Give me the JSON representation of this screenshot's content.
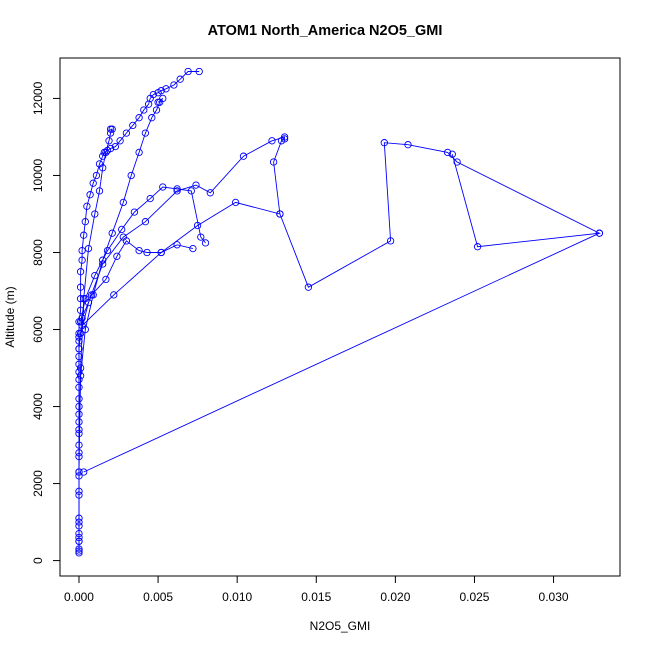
{
  "chart_data": {
    "type": "scatter",
    "title": "ATOM1 North_America N2O5_GMI",
    "xlabel": "N2O5_GMI",
    "ylabel": "Altitude (m)",
    "xlim": [
      -0.0012,
      0.0342
    ],
    "ylim": [
      -400,
      13050
    ],
    "x_ticks": [
      0.0,
      0.005,
      0.01,
      0.015,
      0.02,
      0.025,
      0.03
    ],
    "x_tick_labels": [
      "0.000",
      "0.005",
      "0.010",
      "0.015",
      "0.020",
      "0.025",
      "0.030"
    ],
    "y_ticks": [
      0,
      2000,
      4000,
      6000,
      8000,
      10000,
      12000
    ],
    "y_tick_labels": [
      "0",
      "2000",
      "4000",
      "6000",
      "8000",
      "10000",
      "12000"
    ],
    "grid": false,
    "legend": "none",
    "marker": "open-circle",
    "line_connected": true,
    "series_color": "#0000ff",
    "series": [
      {
        "x": [
          0.0,
          0.0,
          0.0,
          0.0,
          0.0,
          0.0,
          0.0,
          0.0,
          0.0,
          0.0,
          0.0,
          0.0,
          0.0,
          0.0,
          0.0,
          0.0,
          0.0001,
          0.0001,
          0.0001,
          0.0001,
          0.0002,
          0.0002,
          0.0003,
          0.0004,
          0.0005,
          0.0007,
          0.0009,
          0.0011,
          0.0013,
          0.0015,
          0.0016,
          0.0018,
          0.002,
          0.0023,
          0.0026,
          0.003,
          0.0034,
          0.0038,
          0.0041,
          0.0044,
          0.0045,
          0.0047,
          0.005,
          0.0052,
          0.0055,
          0.006,
          0.0064,
          0.0069,
          0.0076
        ],
        "y": [
          200,
          500,
          700,
          1000,
          1800,
          2300,
          2700,
          3300,
          3600,
          4000,
          4500,
          4900,
          5300,
          5700,
          5900,
          6200,
          6500,
          6800,
          7100,
          7500,
          7800,
          8050,
          8450,
          8800,
          9200,
          9500,
          9800,
          10000,
          10300,
          10500,
          10600,
          10650,
          10700,
          10750,
          10900,
          11100,
          11300,
          11500,
          11700,
          11850,
          12000,
          12100,
          12150,
          12200,
          12250,
          12350,
          12500,
          12700,
          12700
        ]
      },
      {
        "x": [
          0.0,
          0.0,
          0.0001,
          0.0003,
          0.0006,
          0.001,
          0.0013,
          0.0015,
          0.0017,
          0.0019,
          0.002,
          0.0021,
          0.002
        ],
        "y": [
          300,
          2300,
          5000,
          6800,
          8100,
          9000,
          9600,
          10200,
          10600,
          10900,
          11100,
          11200,
          11200
        ]
      },
      {
        "x": [
          0.0,
          0.0,
          0.0001,
          0.0004,
          0.0009,
          0.0015,
          0.0021,
          0.0028,
          0.0033,
          0.0038,
          0.0042,
          0.0046,
          0.0049,
          0.0051,
          0.0053,
          0.005
        ],
        "y": [
          500,
          3000,
          4800,
          6000,
          6900,
          7800,
          8500,
          9300,
          10000,
          10600,
          11100,
          11500,
          11700,
          11900,
          12000,
          11900
        ]
      },
      {
        "x": [
          0.0001,
          0.0004,
          0.001,
          0.0018,
          0.0027,
          0.0035,
          0.0045,
          0.0053,
          0.0062,
          0.0071,
          0.0077,
          0.008
        ],
        "y": [
          6200,
          6800,
          7400,
          8050,
          8600,
          9050,
          9400,
          9700,
          9650,
          9600,
          8400,
          8250
        ]
      },
      {
        "x": [
          0.0001,
          0.0006,
          0.0015,
          0.0028,
          0.0042,
          0.0062,
          0.0074,
          0.0083,
          0.0104,
          0.0122,
          0.013,
          0.013,
          0.0128,
          0.0123,
          0.0127
        ],
        "y": [
          5900,
          6700,
          7700,
          8400,
          8800,
          9600,
          9750,
          9550,
          10500,
          10900,
          11000,
          10950,
          10900,
          10350,
          9000
        ]
      },
      {
        "x": [
          0.0,
          0.0002,
          0.0008,
          0.0017,
          0.0024,
          0.003,
          0.0038,
          0.0043,
          0.0052,
          0.0062,
          0.0072
        ],
        "y": [
          5500,
          6300,
          6900,
          7300,
          7900,
          8300,
          8050,
          8000,
          8000,
          8200,
          8100
        ]
      },
      {
        "x": [
          0.0002,
          0.0022,
          0.0052,
          0.0075,
          0.0099,
          0.0127,
          0.0145,
          0.0197,
          0.0193,
          0.0208,
          0.0233,
          0.0239,
          0.0329,
          0.0252,
          0.0236
        ],
        "y": [
          6100,
          6900,
          8000,
          8700,
          9300,
          9000,
          7100,
          8300,
          10850,
          10800,
          10600,
          10350,
          8500,
          8150,
          10550
        ]
      },
      {
        "x": [
          0.0003,
          0.0329
        ],
        "y": [
          2300,
          8500
        ]
      },
      {
        "x": [
          0.0,
          0.0,
          0.0,
          0.0,
          0.0,
          0.0,
          0.0,
          0.0,
          0.0,
          0.0,
          0.0,
          0.0,
          0.0,
          0.0
        ],
        "y": [
          250,
          600,
          900,
          1100,
          1700,
          2200,
          2800,
          3400,
          3800,
          4200,
          4700,
          5100,
          5500,
          5800
        ]
      }
    ]
  }
}
